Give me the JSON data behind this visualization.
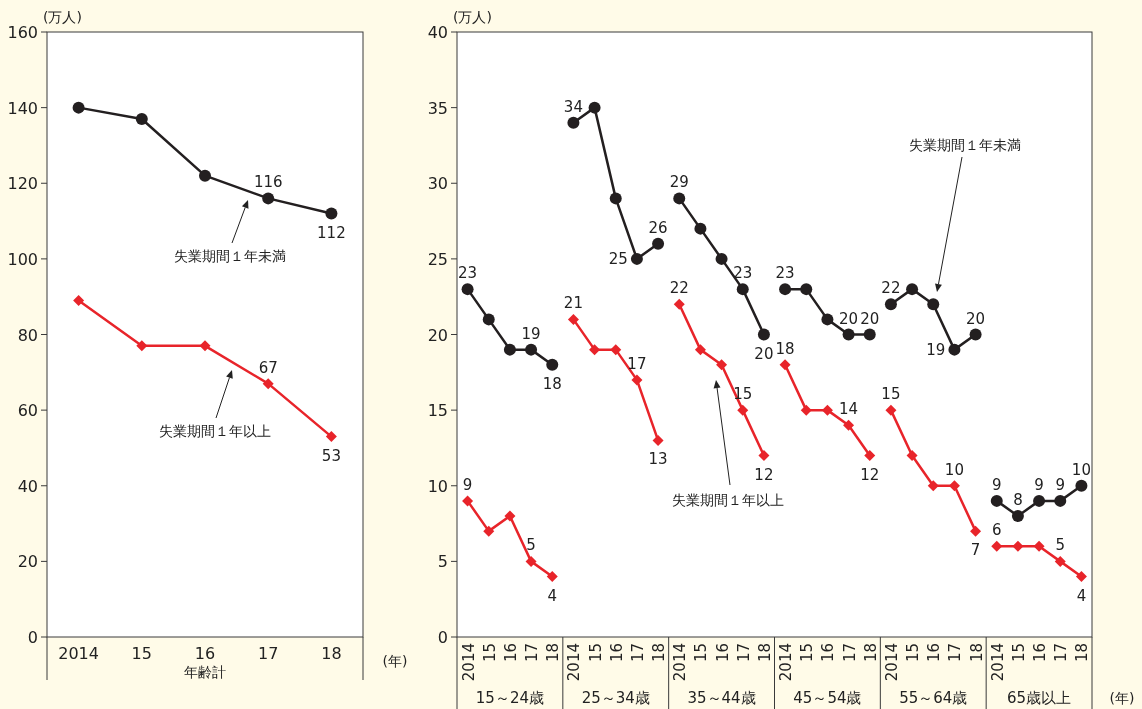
{
  "chart_data": [
    {
      "type": "line",
      "categories": [
        "2014",
        "15",
        "16",
        "17",
        "18"
      ],
      "xlabel": "年齢計",
      "ylabel": "(万人)",
      "ylim": [
        0,
        160
      ],
      "yticks": [
        0,
        20,
        40,
        60,
        80,
        100,
        120,
        140,
        160
      ],
      "series": [
        {
          "color": "#231f20",
          "marker": "circle",
          "values": [
            140,
            137,
            122,
            116,
            112
          ],
          "value_labels": [
            null,
            null,
            null,
            "116",
            "112"
          ]
        },
        {
          "color": "#e8242a",
          "marker": "diamond",
          "values": [
            89,
            77,
            77,
            67,
            53
          ],
          "value_labels": [
            null,
            null,
            null,
            "67",
            "53"
          ]
        }
      ],
      "annotations": [
        "失業期間１年未満",
        "失業期間１年以上",
        "(年)"
      ]
    },
    {
      "type": "line",
      "categories": [
        "2014",
        "15",
        "16",
        "17",
        "18",
        "2014",
        "15",
        "16",
        "17",
        "18",
        "2014",
        "15",
        "16",
        "17",
        "18",
        "2014",
        "15",
        "16",
        "17",
        "18",
        "2014",
        "15",
        "16",
        "17",
        "18",
        "2014",
        "15",
        "16",
        "17",
        "18"
      ],
      "ylabel": "(万人)",
      "ylim": [
        0,
        40
      ],
      "yticks": [
        0,
        5,
        10,
        15,
        20,
        25,
        30,
        35,
        40
      ],
      "series": [
        {
          "color": "#231f20",
          "marker": "circle",
          "values": [
            23,
            21,
            19,
            19,
            18,
            null,
            null,
            null,
            null,
            null,
            null,
            null,
            null,
            null,
            null,
            null,
            null,
            null,
            null,
            null,
            null,
            null,
            null,
            null,
            null,
            null,
            null,
            null,
            null,
            null
          ],
          "value_labels": [
            "23",
            null,
            null,
            "19",
            "18",
            null,
            null,
            null,
            null,
            null,
            null,
            null,
            null,
            null,
            null,
            null,
            null,
            null,
            null,
            null,
            null,
            null,
            null,
            null,
            null,
            null,
            null,
            null,
            null,
            null
          ]
        },
        {
          "color": "#231f20",
          "marker": "circle",
          "values": [
            null,
            null,
            null,
            null,
            null,
            34,
            35,
            29,
            25,
            26,
            null,
            null,
            null,
            null,
            null,
            null,
            null,
            null,
            null,
            null,
            null,
            null,
            null,
            null,
            null,
            null,
            null,
            null,
            null,
            null
          ],
          "value_labels": [
            null,
            null,
            null,
            null,
            null,
            "34",
            null,
            null,
            "25",
            "26",
            null,
            null,
            null,
            null,
            null,
            null,
            null,
            null,
            null,
            null,
            null,
            null,
            null,
            null,
            null,
            null,
            null,
            null,
            null,
            null
          ]
        },
        {
          "color": "#231f20",
          "marker": "circle",
          "values": [
            null,
            null,
            null,
            null,
            null,
            null,
            null,
            null,
            null,
            null,
            29,
            27,
            25,
            23,
            20,
            null,
            null,
            null,
            null,
            null,
            null,
            null,
            null,
            null,
            null,
            null,
            null,
            null,
            null,
            null
          ],
          "value_labels": [
            null,
            null,
            null,
            null,
            null,
            null,
            null,
            null,
            null,
            null,
            "29",
            null,
            null,
            "23",
            "20",
            null,
            null,
            null,
            null,
            null,
            null,
            null,
            null,
            null,
            null,
            null,
            null,
            null,
            null,
            null
          ]
        },
        {
          "color": "#231f20",
          "marker": "circle",
          "values": [
            null,
            null,
            null,
            null,
            null,
            null,
            null,
            null,
            null,
            null,
            null,
            null,
            null,
            null,
            null,
            23,
            23,
            21,
            20,
            20,
            null,
            null,
            null,
            null,
            null,
            null,
            null,
            null,
            null,
            null
          ],
          "value_labels": [
            null,
            null,
            null,
            null,
            null,
            null,
            null,
            null,
            null,
            null,
            null,
            null,
            null,
            null,
            null,
            "23",
            null,
            null,
            "20",
            "20",
            null,
            null,
            null,
            null,
            null,
            null,
            null,
            null,
            null,
            null
          ]
        },
        {
          "color": "#231f20",
          "marker": "circle",
          "values": [
            null,
            null,
            null,
            null,
            null,
            null,
            null,
            null,
            null,
            null,
            null,
            null,
            null,
            null,
            null,
            null,
            null,
            null,
            null,
            null,
            22,
            23,
            22,
            19,
            20,
            null,
            null,
            null,
            null,
            null
          ],
          "value_labels": [
            null,
            null,
            null,
            null,
            null,
            null,
            null,
            null,
            null,
            null,
            null,
            null,
            null,
            null,
            null,
            null,
            null,
            null,
            null,
            null,
            "22",
            null,
            null,
            "19",
            "20",
            null,
            null,
            null,
            null,
            null
          ]
        },
        {
          "color": "#231f20",
          "marker": "circle",
          "values": [
            null,
            null,
            null,
            null,
            null,
            null,
            null,
            null,
            null,
            null,
            null,
            null,
            null,
            null,
            null,
            null,
            null,
            null,
            null,
            null,
            null,
            null,
            null,
            null,
            null,
            9,
            8,
            9,
            9,
            10
          ],
          "value_labels": [
            null,
            null,
            null,
            null,
            null,
            null,
            null,
            null,
            null,
            null,
            null,
            null,
            null,
            null,
            null,
            null,
            null,
            null,
            null,
            null,
            null,
            null,
            null,
            null,
            null,
            "9",
            "8",
            "9",
            "9",
            "10"
          ]
        },
        {
          "color": "#e8242a",
          "marker": "diamond",
          "values": [
            9,
            7,
            8,
            5,
            4,
            null,
            null,
            null,
            null,
            null,
            null,
            null,
            null,
            null,
            null,
            null,
            null,
            null,
            null,
            null,
            null,
            null,
            null,
            null,
            null,
            null,
            null,
            null,
            null,
            null
          ],
          "value_labels": [
            "9",
            null,
            null,
            "5",
            "4",
            null,
            null,
            null,
            null,
            null,
            null,
            null,
            null,
            null,
            null,
            null,
            null,
            null,
            null,
            null,
            null,
            null,
            null,
            null,
            null,
            null,
            null,
            null,
            null,
            null
          ]
        },
        {
          "color": "#e8242a",
          "marker": "diamond",
          "values": [
            null,
            null,
            null,
            null,
            null,
            21,
            19,
            19,
            17,
            13,
            null,
            null,
            null,
            null,
            null,
            null,
            null,
            null,
            null,
            null,
            null,
            null,
            null,
            null,
            null,
            null,
            null,
            null,
            null,
            null
          ],
          "value_labels": [
            null,
            null,
            null,
            null,
            null,
            "21",
            null,
            null,
            "17",
            "13",
            null,
            null,
            null,
            null,
            null,
            null,
            null,
            null,
            null,
            null,
            null,
            null,
            null,
            null,
            null,
            null,
            null,
            null,
            null,
            null
          ]
        },
        {
          "color": "#e8242a",
          "marker": "diamond",
          "values": [
            null,
            null,
            null,
            null,
            null,
            null,
            null,
            null,
            null,
            null,
            22,
            19,
            18,
            15,
            12,
            null,
            null,
            null,
            null,
            null,
            null,
            null,
            null,
            null,
            null,
            null,
            null,
            null,
            null,
            null
          ],
          "value_labels": [
            null,
            null,
            null,
            null,
            null,
            null,
            null,
            null,
            null,
            null,
            "22",
            null,
            null,
            "15",
            "12",
            null,
            null,
            null,
            null,
            null,
            null,
            null,
            null,
            null,
            null,
            null,
            null,
            null,
            null,
            null
          ]
        },
        {
          "color": "#e8242a",
          "marker": "diamond",
          "values": [
            null,
            null,
            null,
            null,
            null,
            null,
            null,
            null,
            null,
            null,
            null,
            null,
            null,
            null,
            null,
            18,
            15,
            15,
            14,
            12,
            null,
            null,
            null,
            null,
            null,
            null,
            null,
            null,
            null,
            null
          ],
          "value_labels": [
            null,
            null,
            null,
            null,
            null,
            null,
            null,
            null,
            null,
            null,
            null,
            null,
            null,
            null,
            null,
            "18",
            null,
            null,
            "14",
            "12",
            null,
            null,
            null,
            null,
            null,
            null,
            null,
            null,
            null,
            null
          ]
        },
        {
          "color": "#e8242a",
          "marker": "diamond",
          "values": [
            null,
            null,
            null,
            null,
            null,
            null,
            null,
            null,
            null,
            null,
            null,
            null,
            null,
            null,
            null,
            null,
            null,
            null,
            null,
            null,
            15,
            12,
            10,
            10,
            7,
            null,
            null,
            null,
            null,
            null
          ],
          "value_labels": [
            null,
            null,
            null,
            null,
            null,
            null,
            null,
            null,
            null,
            null,
            null,
            null,
            null,
            null,
            null,
            null,
            null,
            null,
            null,
            null,
            "15",
            null,
            null,
            "10",
            "7",
            null,
            null,
            null,
            null,
            null
          ]
        },
        {
          "color": "#e8242a",
          "marker": "diamond",
          "values": [
            null,
            null,
            null,
            null,
            null,
            null,
            null,
            null,
            null,
            null,
            null,
            null,
            null,
            null,
            null,
            null,
            null,
            null,
            null,
            null,
            null,
            null,
            null,
            null,
            null,
            6,
            6,
            6,
            5,
            4
          ],
          "value_labels": [
            null,
            null,
            null,
            null,
            null,
            null,
            null,
            null,
            null,
            null,
            null,
            null,
            null,
            null,
            null,
            null,
            null,
            null,
            null,
            null,
            null,
            null,
            null,
            null,
            null,
            "6",
            null,
            null,
            "5",
            "4"
          ]
        }
      ],
      "annotations": [
        "15～24歳",
        "25～34歳",
        "35～44歳",
        "45～54歳",
        "55～64歳",
        "65歳以上",
        "失業期間１年未満",
        "失業期間１年以上",
        "(年)"
      ]
    }
  ]
}
